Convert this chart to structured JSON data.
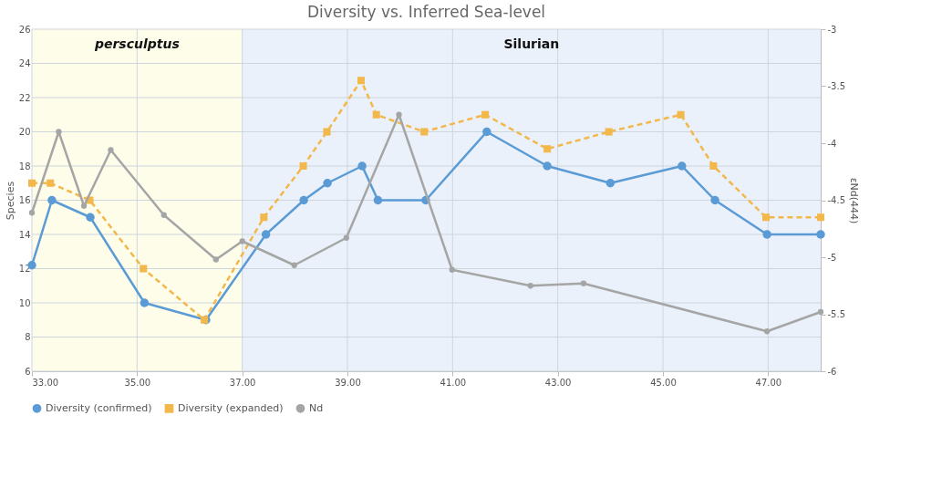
{
  "chart_data": {
    "type": "line",
    "title": "Diversity vs. Inferred Sea-level",
    "ylabel": "Species",
    "y2label": "εNd(444)",
    "xlim": [
      33,
      48
    ],
    "xticks": [
      {
        "value": 33,
        "label": "33.00"
      },
      {
        "value": 35,
        "label": "35.00"
      },
      {
        "value": 37,
        "label": "37.00"
      },
      {
        "value": 39,
        "label": "39.00"
      },
      {
        "value": 41,
        "label": "41.00"
      },
      {
        "value": 43,
        "label": "43.00"
      },
      {
        "value": 45,
        "label": "45.00"
      },
      {
        "value": 47,
        "label": "47.00"
      }
    ],
    "ylim": [
      6,
      26
    ],
    "yticks": [
      6,
      8,
      10,
      12,
      14,
      16,
      18,
      20,
      22,
      24,
      26
    ],
    "y2lim": [
      -6,
      -3
    ],
    "y2ticks": [
      -6,
      -5.5,
      -5,
      -4.5,
      -4,
      -3.5,
      -3
    ],
    "grid": true,
    "legend": "bottom",
    "bands": [
      {
        "axis": "x",
        "from": 33,
        "to": 37,
        "label": "persculptus",
        "color": "#fdfdea"
      },
      {
        "axis": "x",
        "from": 37,
        "to": 48,
        "label": "Silurian",
        "color": "#eaf1fa"
      }
    ],
    "series": [
      {
        "name": "Diversity (confirmed)",
        "color": "#5b9bd5",
        "marker": "circle",
        "line_style": "solid",
        "x": [
          33,
          33.38,
          34.11,
          35.14,
          36.31,
          37.45,
          38.17,
          38.62,
          39.28,
          39.58,
          40.49,
          41.65,
          42.8,
          44.0,
          45.36,
          45.99,
          46.98,
          48
        ],
        "values": [
          12.2,
          16,
          15,
          10,
          9,
          14,
          16,
          17,
          18,
          16,
          16,
          20,
          18,
          17,
          18,
          16,
          14,
          14
        ]
      },
      {
        "name": "Diversity (expanded)",
        "color": "#f2b84b",
        "marker": "square",
        "line_style": "dashed",
        "x": [
          33,
          33.35,
          34.1,
          35.12,
          36.28,
          37.41,
          38.16,
          38.61,
          39.26,
          39.55,
          40.46,
          41.62,
          42.8,
          43.97,
          45.34,
          45.96,
          46.96,
          48
        ],
        "values": [
          17,
          17,
          16,
          12,
          9,
          15,
          18,
          20,
          23,
          21,
          20,
          21,
          19,
          20,
          21,
          18,
          15,
          15
        ]
      },
      {
        "name": "Nd",
        "color": "#a5a5a5",
        "marker": "circle",
        "line_style": "solid",
        "axis": "y2",
        "x": [
          33,
          33.51,
          33.99,
          34.5,
          35.51,
          36.5,
          37.0,
          37.99,
          38.98,
          39.98,
          40.99,
          42.48,
          43.49,
          46.98,
          48.0
        ],
        "values": [
          -4.61,
          -3.9,
          -4.55,
          -4.06,
          -4.63,
          -5.02,
          -4.86,
          -5.07,
          -4.83,
          -3.75,
          -5.11,
          -5.25,
          -5.23,
          -5.65,
          -5.48
        ]
      }
    ]
  }
}
